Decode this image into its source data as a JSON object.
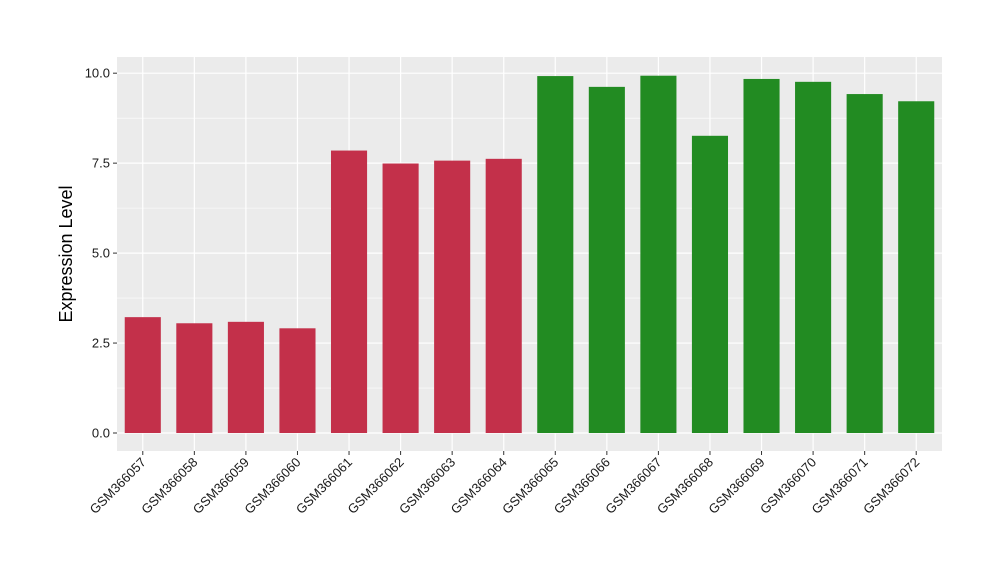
{
  "chart_data": {
    "type": "bar",
    "title": "",
    "xlabel": "",
    "ylabel": "Expression Level",
    "ylim": [
      -0.5,
      10.45
    ],
    "yticks": [
      0.0,
      2.5,
      5.0,
      7.5,
      10.0
    ],
    "ytick_labels": [
      "0.0",
      "2.5",
      "5.0",
      "7.5",
      "10.0"
    ],
    "grid": true,
    "legend": "none",
    "categories": [
      "GSM366057",
      "GSM366058",
      "GSM366059",
      "GSM366060",
      "GSM366061",
      "GSM366062",
      "GSM366063",
      "GSM366064",
      "GSM366065",
      "GSM366066",
      "GSM366067",
      "GSM366068",
      "GSM366069",
      "GSM366070",
      "GSM366071",
      "GSM366072"
    ],
    "values": [
      3.22,
      3.05,
      3.09,
      2.91,
      7.85,
      7.49,
      7.57,
      7.62,
      9.92,
      9.62,
      9.93,
      8.26,
      9.84,
      9.76,
      9.42,
      9.22
    ],
    "bar_colors": [
      "#c3304a",
      "#c3304a",
      "#c3304a",
      "#c3304a",
      "#c3304a",
      "#c3304a",
      "#c3304a",
      "#c3304a",
      "#228b22",
      "#228b22",
      "#228b22",
      "#228b22",
      "#228b22",
      "#228b22",
      "#228b22",
      "#228b22"
    ],
    "panel_background": "#ebebeb",
    "grid_color": "#ffffff"
  }
}
